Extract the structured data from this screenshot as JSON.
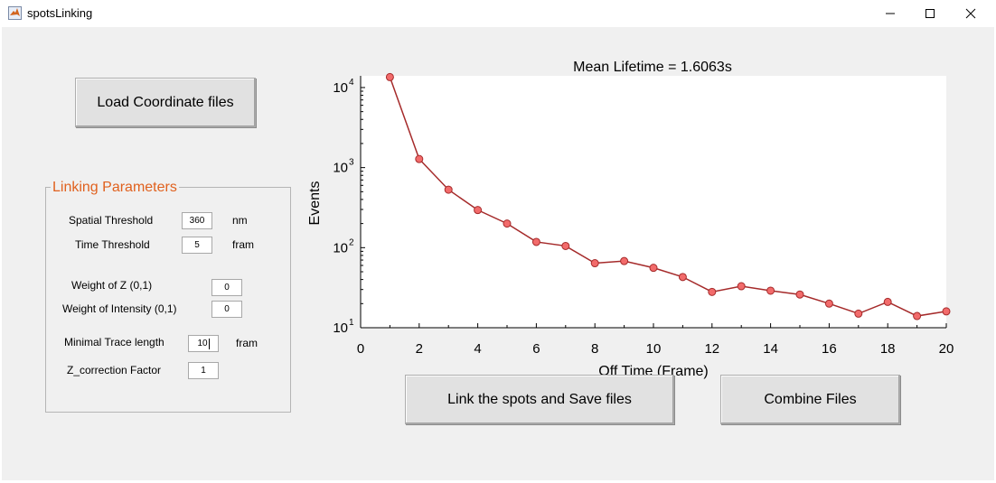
{
  "window": {
    "title": "spotsLinking"
  },
  "buttons": {
    "load": "Load Coordinate files",
    "link": "Link the spots and Save files",
    "combine": "Combine Files"
  },
  "panel": {
    "title": "Linking Parameters",
    "spatial_label": "Spatial Threshold",
    "spatial_value": "360",
    "spatial_unit": "nm",
    "time_label": "Time Threshold",
    "time_value": "5",
    "time_unit": "fram",
    "weightz_label": "Weight of Z (0,1)",
    "weightz_value": "0",
    "weighti_label": "Weight of Intensity (0,1)",
    "weighti_value": "0",
    "mintrace_label": "Minimal Trace length",
    "mintrace_value": "10",
    "mintrace_unit": "fram",
    "zcorr_label": "Z_correction Factor",
    "zcorr_value": "1"
  },
  "chart_data": {
    "type": "line",
    "title": "Mean Lifetime = 1.6063s",
    "xlabel": "Off Time (Frame)",
    "ylabel": "Events",
    "yscale": "log",
    "xlim": [
      0,
      20
    ],
    "ylim": [
      10,
      14000
    ],
    "x_ticks": [
      "0",
      "2",
      "4",
      "6",
      "8",
      "10",
      "12",
      "14",
      "16",
      "18",
      "20"
    ],
    "y_ticks": [
      {
        "base": "10",
        "exp": "1",
        "value": 10
      },
      {
        "base": "10",
        "exp": "2",
        "value": 100
      },
      {
        "base": "10",
        "exp": "3",
        "value": 1000
      },
      {
        "base": "10",
        "exp": "4",
        "value": 10000
      }
    ],
    "series": [
      {
        "x": [
          1,
          2,
          3,
          4,
          5,
          6,
          7,
          8,
          9,
          10,
          11,
          12,
          13,
          14,
          15,
          16,
          17,
          18,
          19,
          20
        ],
        "values": [
          13500,
          1280,
          530,
          295,
          200,
          118,
          105,
          64,
          68,
          56,
          43,
          28,
          33,
          29,
          26,
          20,
          15,
          21,
          14,
          16
        ]
      }
    ],
    "line_color": "#a52a2a",
    "marker_color": "#f26b6b",
    "grid": false
  }
}
